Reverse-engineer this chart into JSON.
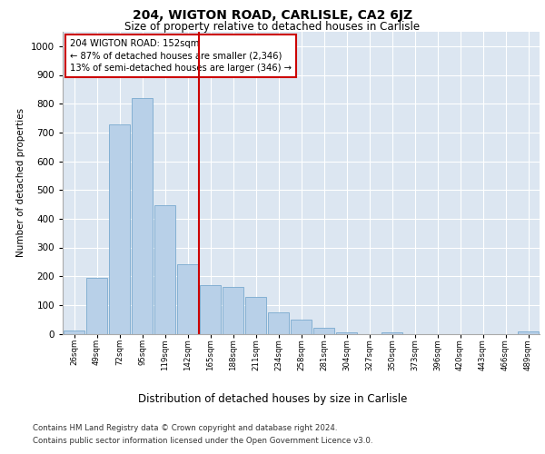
{
  "title": "204, WIGTON ROAD, CARLISLE, CA2 6JZ",
  "subtitle": "Size of property relative to detached houses in Carlisle",
  "xlabel": "Distribution of detached houses by size in Carlisle",
  "ylabel": "Number of detached properties",
  "categories": [
    "26sqm",
    "49sqm",
    "72sqm",
    "95sqm",
    "119sqm",
    "142sqm",
    "165sqm",
    "188sqm",
    "211sqm",
    "234sqm",
    "258sqm",
    "281sqm",
    "304sqm",
    "327sqm",
    "350sqm",
    "373sqm",
    "396sqm",
    "420sqm",
    "443sqm",
    "466sqm",
    "489sqm"
  ],
  "values": [
    10,
    193,
    728,
    820,
    448,
    243,
    170,
    163,
    128,
    75,
    48,
    20,
    5,
    0,
    5,
    0,
    0,
    0,
    0,
    0,
    8
  ],
  "bar_color": "#b8d0e8",
  "bar_edge_color": "#7aaacf",
  "vline_x": 5.5,
  "vline_color": "#cc0000",
  "annotation_text": "204 WIGTON ROAD: 152sqm\n← 87% of detached houses are smaller (2,346)\n13% of semi-detached houses are larger (346) →",
  "annotation_box_color": "#ffffff",
  "annotation_box_edge": "#cc0000",
  "ylim": [
    0,
    1050
  ],
  "yticks": [
    0,
    100,
    200,
    300,
    400,
    500,
    600,
    700,
    800,
    900,
    1000
  ],
  "background_color": "#dce6f1",
  "footer_line1": "Contains HM Land Registry data © Crown copyright and database right 2024.",
  "footer_line2": "Contains public sector information licensed under the Open Government Licence v3.0."
}
